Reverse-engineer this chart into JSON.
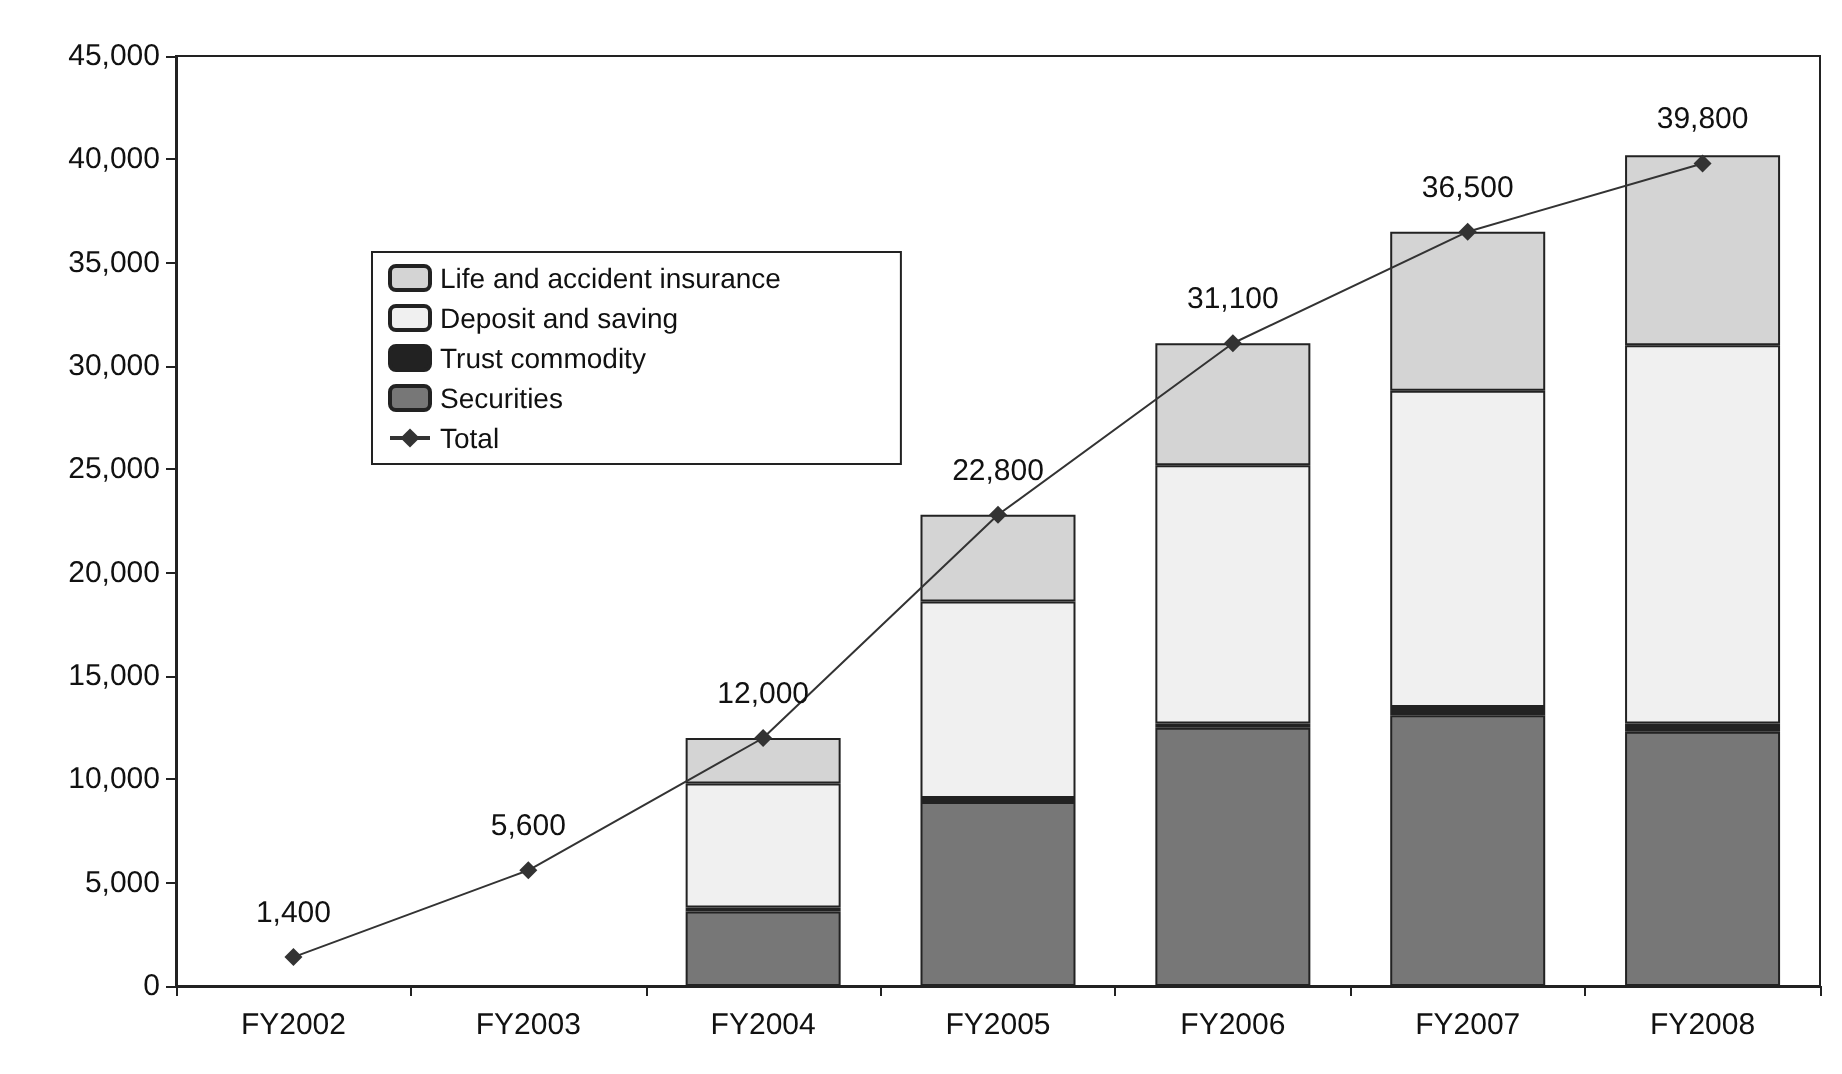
{
  "chart_data": {
    "type": "bar",
    "stacked": true,
    "categories": [
      "FY2002",
      "FY2003",
      "FY2004",
      "FY2005",
      "FY2006",
      "FY2007",
      "FY2008"
    ],
    "series": [
      {
        "name": "Securities",
        "color": "#777777",
        "values": [
          null,
          null,
          3600,
          8900,
          12500,
          13100,
          12300
        ]
      },
      {
        "name": "Trust commodity",
        "color": "#222222",
        "values": [
          null,
          null,
          200,
          200,
          200,
          400,
          400
        ]
      },
      {
        "name": "Deposit and saving",
        "color": "#f0f0f0",
        "values": [
          null,
          null,
          6000,
          9500,
          12500,
          15300,
          18300
        ]
      },
      {
        "name": "Life and accident insurance",
        "color": "#d4d4d4",
        "values": [
          null,
          null,
          2200,
          4200,
          5900,
          7700,
          9200
        ]
      },
      {
        "name": "Total",
        "type": "line",
        "color": "#333333",
        "marker": "diamond",
        "values": [
          1400,
          5600,
          12000,
          22800,
          31100,
          36500,
          39800
        ],
        "value_labels": [
          "1,400",
          "5,600",
          "12,000",
          "22,800",
          "31,100",
          "36,500",
          "39,800"
        ]
      }
    ],
    "ylim": [
      0,
      45000
    ],
    "yticks": [
      0,
      {
        "value": 5000,
        "label": "5,000"
      },
      {
        "value": 10000,
        "label": "10,000"
      },
      {
        "value": 15000,
        "label": "15,000"
      },
      {
        "value": 20000,
        "label": "20,000"
      },
      {
        "value": 25000,
        "label": "25,000"
      },
      {
        "value": 30000,
        "label": "30,000"
      },
      {
        "value": 35000,
        "label": "35,000"
      },
      {
        "value": 40000,
        "label": "40,000"
      },
      {
        "value": 45000,
        "label": "45,000"
      }
    ],
    "grid": false,
    "legend": "top left"
  }
}
